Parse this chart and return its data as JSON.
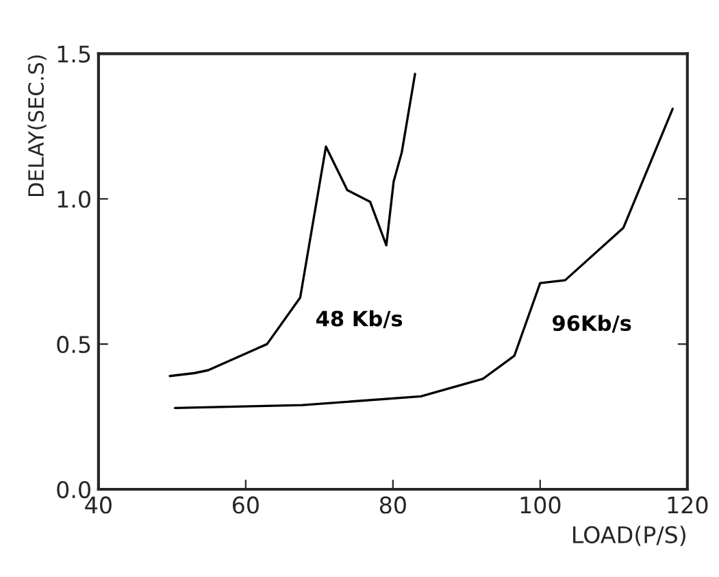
{
  "chart_data": {
    "type": "line",
    "xlabel": "LOAD(P/S)",
    "ylabel": "DELAY(SEC.S)",
    "xlim": [
      40,
      120
    ],
    "ylim": [
      0,
      1.5
    ],
    "xticks": [
      40,
      60,
      80,
      100,
      120
    ],
    "yticks": [
      {
        "value": 0,
        "label": "0.0"
      },
      {
        "value": 0.5,
        "label": "0.5"
      },
      {
        "value": 1.0,
        "label": "1.0"
      },
      {
        "value": 1.5,
        "label": "1.5"
      }
    ],
    "grid": false,
    "marker": "none",
    "line_style": "solid",
    "series": [
      {
        "name": "48 Kb/s",
        "color": "#000000",
        "x": [
          49.7,
          53.0,
          54.9,
          62.9,
          67.4,
          70.9,
          73.8,
          76.9,
          79.1,
          80.1,
          81.2,
          83.0
        ],
        "values": [
          0.39,
          0.4,
          0.41,
          0.5,
          0.66,
          1.18,
          1.03,
          0.99,
          0.84,
          1.06,
          1.16,
          1.43
        ]
      },
      {
        "name": "96Kb/s",
        "color": "#000000",
        "x": [
          50.4,
          67.7,
          83.8,
          92.2,
          96.5,
          100.0,
          103.4,
          111.3,
          118.0
        ],
        "values": [
          0.28,
          0.29,
          0.32,
          0.38,
          0.46,
          0.71,
          0.72,
          0.9,
          1.31
        ]
      }
    ]
  }
}
